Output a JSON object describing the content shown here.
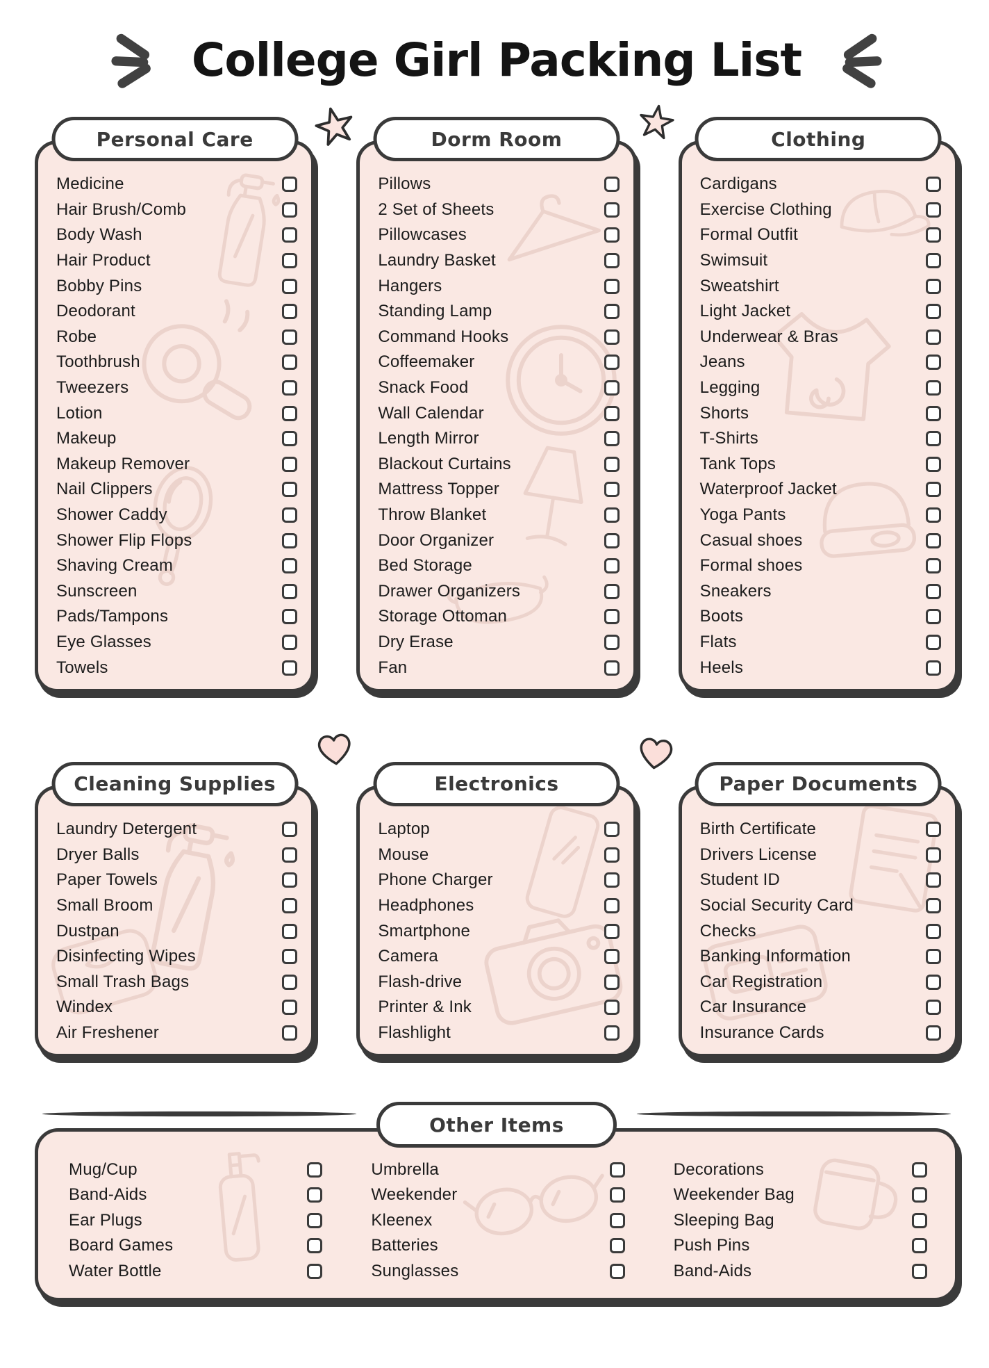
{
  "title": "College Girl Packing List",
  "colors": {
    "card_background": "#fae8e3",
    "outline": "#3a3a3a",
    "item_text": "#1c1c1c",
    "pill_background": "#ffffff",
    "doodle_stroke": "#ead0c9",
    "star_fill": "#fbe5e0",
    "heart_fill": "#fbdfda"
  },
  "decorations": {
    "title_left": "speed-lines",
    "title_right": "speed-lines",
    "row1_gaps": [
      "star",
      "star"
    ],
    "row2_gaps": [
      "heart",
      "heart"
    ]
  },
  "sections": [
    {
      "id": "personal-care",
      "title": "Personal Care",
      "doodles": [
        "spray-bottle",
        "hair-dryer",
        "hand-mirror"
      ],
      "items": [
        "Medicine",
        "Hair Brush/Comb",
        "Body Wash",
        "Hair Product",
        "Bobby Pins",
        "Deodorant",
        "Robe",
        "Toothbrush",
        "Tweezers",
        "Lotion",
        "Makeup",
        "Makeup Remover",
        "Nail Clippers",
        "Shower Caddy",
        "Shower Flip Flops",
        "Shaving Cream",
        "Sunscreen",
        "Pads/Tampons",
        "Eye Glasses",
        "Towels"
      ]
    },
    {
      "id": "dorm-room",
      "title": "Dorm Room",
      "doodles": [
        "hanger",
        "clock",
        "lamp",
        "sleep-mask"
      ],
      "items": [
        "Pillows",
        "2 Set of Sheets",
        "Pillowcases",
        "Laundry Basket",
        "Hangers",
        "Standing Lamp",
        "Command Hooks",
        "Coffeemaker",
        "Snack Food",
        "Wall Calendar",
        "Length Mirror",
        "Blackout Curtains",
        "Mattress Topper",
        "Throw Blanket",
        "Door Organizer",
        "Bed Storage",
        "Drawer Organizers",
        "Storage Ottoman",
        "Dry Erase",
        "Fan"
      ]
    },
    {
      "id": "clothing",
      "title": "Clothing",
      "doodles": [
        "cap",
        "tshirt",
        "beanie"
      ],
      "items": [
        "Cardigans",
        "Exercise Clothing",
        "Formal Outfit",
        "Swimsuit",
        "Sweatshirt",
        "Light Jacket",
        "Underwear & Bras",
        "Jeans",
        "Legging",
        "Shorts",
        "T-Shirts",
        "Tank Tops",
        "Waterproof Jacket",
        "Yoga Pants",
        "Casual shoes",
        "Formal shoes",
        "Sneakers",
        "Boots",
        "Flats",
        "Heels"
      ]
    },
    {
      "id": "cleaning-supplies",
      "title": "Cleaning Supplies",
      "doodles": [
        "spray-bottle",
        "wipes"
      ],
      "items": [
        "Laundry Detergent",
        "Dryer Balls",
        "Paper Towels",
        "Small Broom",
        "Dustpan",
        "Disinfecting Wipes",
        "Small Trash Bags",
        "Windex",
        "Air Freshener"
      ]
    },
    {
      "id": "electronics",
      "title": "Electronics",
      "doodles": [
        "smartphone",
        "camera"
      ],
      "items": [
        "Laptop",
        "Mouse",
        "Phone Charger",
        "Headphones",
        "Smartphone",
        "Camera",
        "Flash-drive",
        "Printer & Ink",
        "Flashlight"
      ]
    },
    {
      "id": "paper-documents",
      "title": "Paper Documents",
      "doodles": [
        "note-page",
        "id-card"
      ],
      "items": [
        "Birth Certificate",
        "Drivers License",
        "Student ID",
        "Social Security Card",
        "Checks",
        "Banking Information",
        "Car Registration",
        "Car Insurance",
        "Insurance Cards"
      ]
    }
  ],
  "other_section": {
    "title": "Other Items",
    "doodles": [
      "pump-bottle",
      "eyeglasses",
      "mug"
    ],
    "columns": [
      [
        "Mug/Cup",
        "Band-Aids",
        "Ear Plugs",
        "Board Games",
        "Water Bottle"
      ],
      [
        "Umbrella",
        "Weekender",
        "Kleenex",
        "Batteries",
        "Sunglasses"
      ],
      [
        "Decorations",
        "Weekender Bag",
        "Sleeping Bag",
        "Push Pins",
        "Band-Aids"
      ]
    ]
  }
}
